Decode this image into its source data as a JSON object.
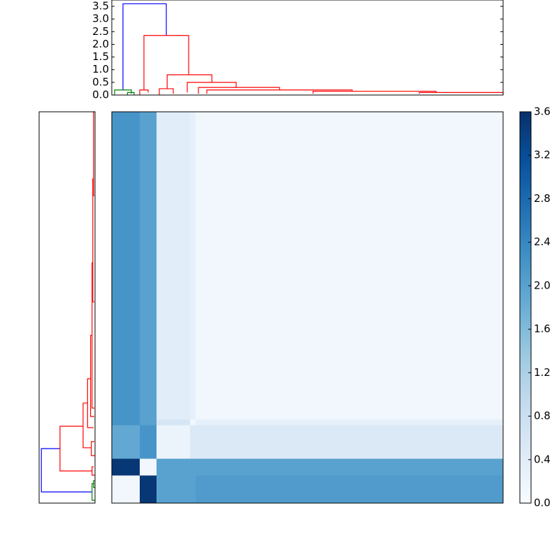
{
  "chart_data": {
    "type": "clustermap",
    "dendrogram": {
      "xlim": [
        0,
        70
      ],
      "ylim": [
        0,
        3.75
      ],
      "yticks": [
        {
          "value": 0,
          "label": "0.0"
        },
        {
          "value": 0.5,
          "label": "0.5"
        },
        {
          "value": 1,
          "label": "1.0"
        },
        {
          "value": 1.5,
          "label": "1.5"
        },
        {
          "value": 2,
          "label": "2.0"
        },
        {
          "value": 2.5,
          "label": "2.5"
        },
        {
          "value": 3,
          "label": "3.0"
        },
        {
          "value": 3.5,
          "label": "3.5"
        }
      ],
      "links": [
        {
          "color": "#0000ff",
          "x": [
            2,
            2,
            9.75,
            9.75
          ],
          "y": [
            0.2,
            3.6,
            3.6,
            2.35
          ]
        },
        {
          "color": "#ff0000",
          "x": [
            5.75,
            5.75,
            13.75,
            13.75
          ],
          "y": [
            0.2,
            2.35,
            2.35,
            0.8
          ]
        },
        {
          "color": "#ff0000",
          "x": [
            9.9,
            9.9,
            17.9,
            17.9
          ],
          "y": [
            0.25,
            0.8,
            0.8,
            0.5
          ]
        },
        {
          "color": "#ff0000",
          "x": [
            13.5,
            13.5,
            22.25,
            22.25
          ],
          "y": [
            0.1,
            0.5,
            0.5,
            0.3
          ]
        },
        {
          "color": "#ff0000",
          "x": [
            15.5,
            15.5,
            30,
            30
          ],
          "y": [
            0.05,
            0.3,
            0.3,
            0.2
          ]
        },
        {
          "color": "#ff0000",
          "x": [
            17,
            17,
            43,
            43
          ],
          "y": [
            0.05,
            0.2,
            0.2,
            0.15
          ]
        },
        {
          "color": "#ff0000",
          "x": [
            36,
            36,
            58,
            58
          ],
          "y": [
            0.05,
            0.15,
            0.15,
            0.1
          ]
        },
        {
          "color": "#ff0000",
          "x": [
            55,
            55,
            70,
            70
          ],
          "y": [
            0.05,
            0.1,
            0.1,
            0
          ]
        },
        {
          "color": "#ff0000",
          "x": [
            5,
            5,
            6.5,
            6.5
          ],
          "y": [
            0,
            0.2,
            0.2,
            0.1
          ]
        },
        {
          "color": "#ff0000",
          "x": [
            8.5,
            8.5,
            11,
            11
          ],
          "y": [
            0,
            0.25,
            0.25,
            0.05
          ]
        },
        {
          "color": "#008000",
          "x": [
            0.5,
            0.5,
            3.5,
            3.5
          ],
          "y": [
            0,
            0.2,
            0.2,
            0.05
          ]
        },
        {
          "color": "#008000",
          "x": [
            2.8,
            2.8,
            4,
            4
          ],
          "y": [
            0,
            0.1,
            0.1,
            0
          ]
        }
      ]
    },
    "heatmap": {
      "block_sizes": [
        5,
        3,
        6,
        1,
        55
      ],
      "values": [
        [
          0.1,
          3.5,
          2.0,
          2.0,
          2.1
        ],
        [
          3.5,
          0.1,
          2.0,
          2.0,
          2.0
        ],
        [
          1.9,
          2.2,
          0.2,
          0.5,
          0.5
        ],
        [
          2.2,
          2.0,
          0.6,
          0.1,
          0.3
        ],
        [
          2.2,
          2.0,
          0.4,
          0.3,
          0.1
        ]
      ],
      "colormap": [
        "#f7fbff",
        "#deebf7",
        "#c6dbef",
        "#9ecae1",
        "#6baed6",
        "#4292c6",
        "#2171b5",
        "#08519c",
        "#08306b"
      ],
      "clim": [
        0,
        3.6
      ],
      "cticks": [
        {
          "value": 0,
          "label": "0.0"
        },
        {
          "value": 0.4,
          "label": "0.4"
        },
        {
          "value": 0.8,
          "label": "0.8"
        },
        {
          "value": 1.2,
          "label": "1.2"
        },
        {
          "value": 1.6,
          "label": "1.6"
        },
        {
          "value": 2,
          "label": "2.0"
        },
        {
          "value": 2.4,
          "label": "2.4"
        },
        {
          "value": 2.8,
          "label": "2.8"
        },
        {
          "value": 3.2,
          "label": "3.2"
        },
        {
          "value": 3.6,
          "label": "3.6"
        }
      ]
    }
  }
}
